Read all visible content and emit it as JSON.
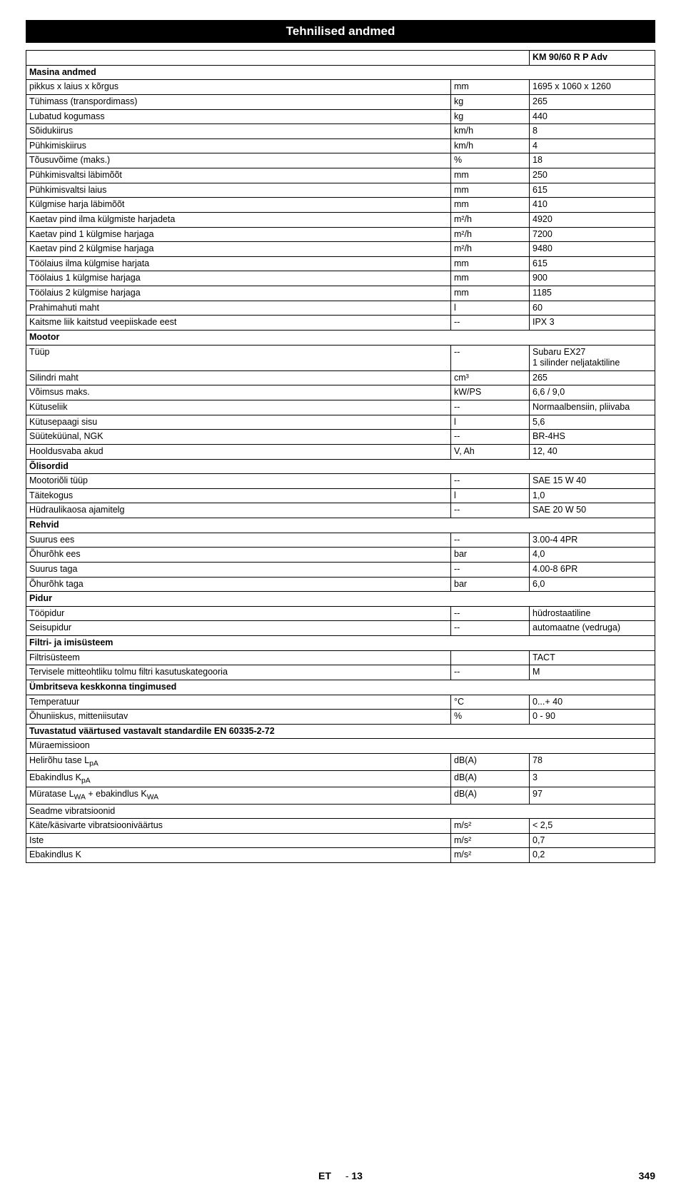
{
  "title": "Tehnilised andmed",
  "header": {
    "col3": "KM 90/60 R P Adv"
  },
  "sections": [
    {
      "name": "Masina andmed",
      "rows": [
        {
          "label": "pikkus x laius x kõrgus",
          "unit": "mm",
          "value": "1695 x 1060 x 1260"
        },
        {
          "label": "Tühimass (transpordimass)",
          "unit": "kg",
          "value": "265"
        },
        {
          "label": "Lubatud kogumass",
          "unit": "kg",
          "value": "440"
        },
        {
          "label": "Sõidukiirus",
          "unit": "km/h",
          "value": "8"
        },
        {
          "label": "Pühkimiskiirus",
          "unit": "km/h",
          "value": "4"
        },
        {
          "label": "Tõusuvõime (maks.)",
          "unit": "%",
          "value": "18"
        },
        {
          "label": "Pühkimisvaltsi läbimõõt",
          "unit": "mm",
          "value": "250"
        },
        {
          "label": "Pühkimisvaltsi laius",
          "unit": "mm",
          "value": "615"
        },
        {
          "label": "Külgmise harja läbimõõt",
          "unit": "mm",
          "value": "410"
        },
        {
          "label": "Kaetav pind ilma külgmiste harjadeta",
          "unit": "m²/h",
          "value": "4920"
        },
        {
          "label": "Kaetav pind 1 külgmise harjaga",
          "unit": "m²/h",
          "value": "7200"
        },
        {
          "label": "Kaetav pind 2 külgmise harjaga",
          "unit": "m²/h",
          "value": "9480"
        },
        {
          "label": "Töölaius ilma külgmise harjata",
          "unit": "mm",
          "value": "615"
        },
        {
          "label": "Töölaius 1 külgmise harjaga",
          "unit": "mm",
          "value": "900"
        },
        {
          "label": "Töölaius 2 külgmise harjaga",
          "unit": "mm",
          "value": "1185"
        },
        {
          "label": "Prahimahuti maht",
          "unit": "l",
          "value": "60"
        },
        {
          "label": "Kaitsme liik kaitstud veepiiskade eest",
          "unit": "--",
          "value": "IPX 3"
        }
      ]
    },
    {
      "name": "Mootor",
      "rows": [
        {
          "label": "Tüüp",
          "unit": "--",
          "value": "Subaru EX27\n1 silinder neljataktiline"
        },
        {
          "label": "Silindri maht",
          "unit": "cm³",
          "value": "265"
        },
        {
          "label": "Võimsus maks.",
          "unit": "kW/PS",
          "value": "6,6 / 9,0"
        },
        {
          "label": "Kütuseliik",
          "unit": "--",
          "value": "Normaalbensiin, pliivaba"
        },
        {
          "label": "Kütusepaagi sisu",
          "unit": "l",
          "value": "5,6"
        },
        {
          "label": "Süüteküünal, NGK",
          "unit": "--",
          "value": "BR-4HS"
        },
        {
          "label": "Hooldusvaba akud",
          "unit": "V, Ah",
          "value": "12, 40"
        }
      ]
    },
    {
      "name": "Õlisordid",
      "rows": [
        {
          "label": "Mootoriõli tüüp",
          "unit": "--",
          "value": "SAE 15 W 40"
        },
        {
          "label": "Täitekogus",
          "unit": "l",
          "value": "1,0"
        },
        {
          "label": "Hüdraulikaosa ajamitelg",
          "unit": "--",
          "value": "SAE 20 W 50"
        }
      ]
    },
    {
      "name": "Rehvid",
      "rows": [
        {
          "label": "Suurus ees",
          "unit": "--",
          "value": "3.00-4 4PR"
        },
        {
          "label": "Õhurõhk ees",
          "unit": "bar",
          "value": "4,0"
        },
        {
          "label": "Suurus taga",
          "unit": "--",
          "value": "4.00-8 6PR"
        },
        {
          "label": "Õhurõhk taga",
          "unit": "bar",
          "value": "6,0"
        }
      ]
    },
    {
      "name": "Pidur",
      "rows": [
        {
          "label": "Tööpidur",
          "unit": "--",
          "value": "hüdrostaatiline"
        },
        {
          "label": "Seisupidur",
          "unit": "--",
          "value": "automaatne (vedruga)"
        }
      ]
    },
    {
      "name": "Filtri- ja imisüsteem",
      "rows": [
        {
          "label": "Filtrisüsteem",
          "unit": "",
          "value": "TACT"
        },
        {
          "label": "Tervisele mitteohtliku tolmu filtri kasutuskategooria",
          "unit": "--",
          "value": "M"
        }
      ]
    },
    {
      "name": "Ümbritseva keskkonna tingimused",
      "rows": [
        {
          "label": "Temperatuur",
          "unit": "°C",
          "value": "0...+ 40"
        },
        {
          "label": "Õhuniiskus, mitteniisutav",
          "unit": "%",
          "value": "0 - 90"
        }
      ]
    },
    {
      "name": "Tuvastatud väärtused vastavalt standardile EN 60335-2-72",
      "rows": [
        {
          "label": "Müraemissioon",
          "unit": "",
          "value": "",
          "span3": true
        },
        {
          "label": "Helirõhu tase L_pA",
          "unit": "dB(A)",
          "value": "78",
          "sub": "pA"
        },
        {
          "label": "Ebakindlus K_pA",
          "unit": "dB(A)",
          "value": "3",
          "sub": "pA"
        },
        {
          "label": "Müratase L_WA + ebakindlus K_WA",
          "unit": "dB(A)",
          "value": "97",
          "sub2": true
        },
        {
          "label": "Seadme vibratsioonid",
          "unit": "",
          "value": "",
          "span3": true
        },
        {
          "label": "Käte/käsivarte vibratsiooniväärtus",
          "unit": "m/s²",
          "value": "< 2,5"
        },
        {
          "label": "Iste",
          "unit": "m/s²",
          "value": "0,7"
        },
        {
          "label": "Ebakindlus K",
          "unit": "m/s²",
          "value": "0,2"
        }
      ]
    }
  ],
  "footer": {
    "lang": "ET",
    "dash": "-",
    "page": "13",
    "total": "349"
  }
}
